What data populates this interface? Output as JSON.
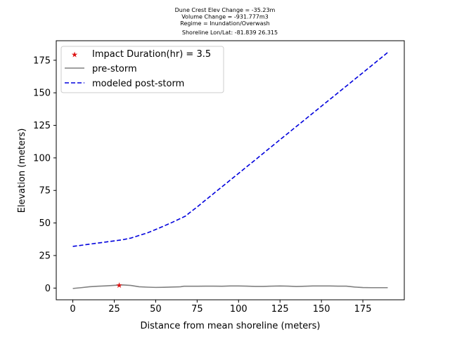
{
  "chart_data": {
    "type": "line",
    "title_lines": [
      "Dune Crest Elev Change = -35.23m",
      "Volume Change = -931.777m3",
      "Regime = Inundation/Overwash",
      "Shoreline Lon/Lat: -81.839 26.315"
    ],
    "xlabel": "Distance from mean shoreline (meters)",
    "ylabel": "Elevation (meters)",
    "xlim": [
      -10,
      200
    ],
    "ylim": [
      -9,
      190
    ],
    "xticks": [
      0,
      25,
      50,
      75,
      100,
      125,
      150,
      175
    ],
    "yticks": [
      0,
      25,
      50,
      75,
      100,
      125,
      150,
      175
    ],
    "grid": false,
    "legend_position": "top-left",
    "series": [
      {
        "name": "pre-storm",
        "style": "solid",
        "color": "#808080",
        "x": [
          0,
          5,
          10,
          15,
          20,
          25,
          28,
          30,
          35,
          40,
          45,
          50,
          55,
          60,
          65,
          67,
          70,
          75,
          80,
          85,
          90,
          95,
          100,
          105,
          110,
          115,
          120,
          125,
          130,
          135,
          140,
          145,
          150,
          155,
          160,
          165,
          167,
          170,
          175,
          180,
          185,
          190
        ],
        "y": [
          -0.3,
          0.3,
          1.0,
          1.4,
          1.7,
          2.1,
          2.3,
          2.4,
          2.0,
          1.0,
          0.7,
          0.5,
          0.6,
          0.8,
          1.0,
          1.4,
          1.4,
          1.4,
          1.5,
          1.5,
          1.4,
          1.6,
          1.6,
          1.5,
          1.3,
          1.3,
          1.5,
          1.6,
          1.5,
          1.2,
          1.4,
          1.6,
          1.6,
          1.6,
          1.5,
          1.5,
          1.2,
          0.8,
          0.4,
          0.3,
          0.3,
          0.3
        ]
      },
      {
        "name": "modeled post-storm",
        "style": "dashed",
        "color": "#0000dd",
        "x": [
          0,
          10,
          20,
          30,
          35,
          40,
          45,
          50,
          55,
          60,
          65,
          68,
          70,
          75,
          80,
          90,
          100,
          110,
          120,
          130,
          140,
          150,
          160,
          170,
          180,
          190
        ],
        "y": [
          32,
          33.7,
          35.4,
          37.1,
          38.4,
          40.4,
          42.4,
          45,
          47.7,
          50.5,
          53.5,
          55.3,
          57.4,
          62.3,
          67.5,
          77.8,
          88.1,
          98.4,
          108.8,
          119.1,
          129.4,
          139.7,
          150,
          160.3,
          170.6,
          181
        ]
      }
    ],
    "marker": {
      "label": "Impact Duration(hr) = 3.5",
      "x": 28,
      "y": 2.3,
      "color": "#dd1111"
    }
  }
}
